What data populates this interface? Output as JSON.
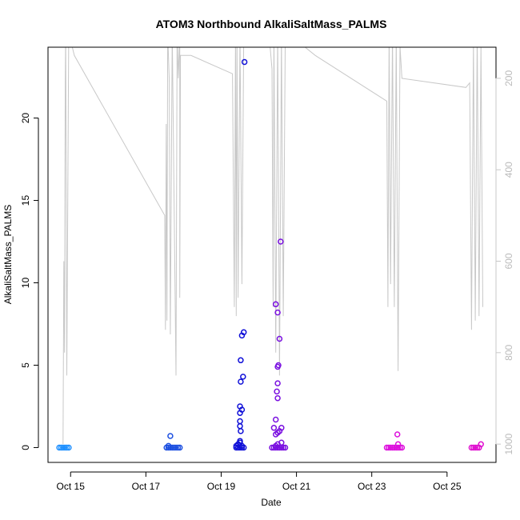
{
  "chart_data": {
    "type": "scatter",
    "title": "ATOM3 Northbound AlkaliSaltMass_PALMS",
    "xlabel": "Date",
    "ylabel": "AlkaliSaltMass_PALMS",
    "y2label": "",
    "x_ticks": [
      {
        "day": 15,
        "label": "Oct 15"
      },
      {
        "day": 17,
        "label": "Oct 17"
      },
      {
        "day": 19,
        "label": "Oct 19"
      },
      {
        "day": 21,
        "label": "Oct 21"
      },
      {
        "day": 23,
        "label": "Oct 23"
      },
      {
        "day": 25,
        "label": "Oct 25"
      }
    ],
    "y_ticks": [
      0,
      5,
      10,
      15,
      20
    ],
    "y2_ticks": [
      200,
      400,
      600,
      800,
      1000
    ],
    "xlim": [
      14.4,
      26.3
    ],
    "ylim": [
      -0.9,
      24.3
    ],
    "y2lim": [
      1040,
      132
    ],
    "grid": false,
    "legend": "none",
    "colors": {
      "flight1": "#1E90FF",
      "flight2": "#1C4FE0",
      "flight3": "#1010D8",
      "flight4": "#7A10E0",
      "flight5": "#DD10DD",
      "flight6": "#E010D0",
      "pressure": "#c8c8c8",
      "axis": "#000000",
      "axis2": "#c8c8c8"
    },
    "series": [
      {
        "color": "#1E90FF",
        "points": [
          [
            14.7,
            0
          ],
          [
            14.75,
            0
          ],
          [
            14.8,
            0
          ],
          [
            14.85,
            0
          ],
          [
            14.9,
            0
          ],
          [
            14.95,
            0
          ]
        ]
      },
      {
        "color": "#1C4FE0",
        "points": [
          [
            17.55,
            0
          ],
          [
            17.6,
            0
          ],
          [
            17.65,
            0
          ],
          [
            17.7,
            0
          ],
          [
            17.75,
            0
          ],
          [
            17.8,
            0
          ],
          [
            17.85,
            0
          ],
          [
            17.9,
            0
          ],
          [
            17.6,
            0.1
          ],
          [
            17.65,
            0.7
          ]
        ]
      },
      {
        "color": "#1010D8",
        "points": [
          [
            19.4,
            0
          ],
          [
            19.45,
            0
          ],
          [
            19.5,
            0
          ],
          [
            19.55,
            0
          ],
          [
            19.6,
            0
          ],
          [
            19.45,
            0.2
          ],
          [
            19.5,
            0.3
          ],
          [
            19.55,
            0.1
          ],
          [
            19.4,
            0.1
          ],
          [
            19.5,
            0.4
          ],
          [
            19.52,
            1.0
          ],
          [
            19.5,
            1.3
          ],
          [
            19.5,
            1.6
          ],
          [
            19.5,
            2.1
          ],
          [
            19.55,
            2.3
          ],
          [
            19.5,
            2.5
          ],
          [
            19.52,
            4.0
          ],
          [
            19.58,
            4.3
          ],
          [
            19.52,
            5.3
          ],
          [
            19.55,
            6.8
          ],
          [
            19.6,
            7.0
          ],
          [
            19.62,
            23.4
          ]
        ]
      },
      {
        "color": "#7A10E0",
        "points": [
          [
            20.35,
            0
          ],
          [
            20.4,
            0
          ],
          [
            20.45,
            0
          ],
          [
            20.5,
            0
          ],
          [
            20.55,
            0
          ],
          [
            20.6,
            0
          ],
          [
            20.65,
            0
          ],
          [
            20.7,
            0
          ],
          [
            20.5,
            0.2
          ],
          [
            20.6,
            0.3
          ],
          [
            20.45,
            0.1
          ],
          [
            20.45,
            0.8
          ],
          [
            20.5,
            0.9
          ],
          [
            20.55,
            1.0
          ],
          [
            20.6,
            1.2
          ],
          [
            20.4,
            1.2
          ],
          [
            20.45,
            1.7
          ],
          [
            20.5,
            3.0
          ],
          [
            20.48,
            3.4
          ],
          [
            20.5,
            3.9
          ],
          [
            20.5,
            4.9
          ],
          [
            20.52,
            5.0
          ],
          [
            20.55,
            6.6
          ],
          [
            20.5,
            8.2
          ],
          [
            20.45,
            8.7
          ],
          [
            20.58,
            12.5
          ]
        ]
      },
      {
        "color": "#DD10DD",
        "points": [
          [
            23.4,
            0
          ],
          [
            23.45,
            0
          ],
          [
            23.5,
            0
          ],
          [
            23.55,
            0
          ],
          [
            23.6,
            0
          ],
          [
            23.65,
            0
          ],
          [
            23.7,
            0
          ],
          [
            23.75,
            0
          ],
          [
            23.8,
            0
          ],
          [
            23.7,
            0.2
          ],
          [
            23.68,
            0.8
          ]
        ]
      },
      {
        "color": "#E010D0",
        "points": [
          [
            25.65,
            0
          ],
          [
            25.7,
            0
          ],
          [
            25.75,
            0
          ],
          [
            25.8,
            0
          ],
          [
            25.85,
            0
          ],
          [
            25.9,
            0.2
          ]
        ]
      }
    ],
    "pressure_trace": [
      [
        14.8,
        1000
      ],
      [
        14.82,
        600
      ],
      [
        14.84,
        800
      ],
      [
        14.85,
        400
      ],
      [
        14.86,
        200
      ],
      [
        14.87,
        100
      ],
      [
        14.9,
        850
      ],
      [
        14.95,
        100
      ],
      [
        15.1,
        150
      ],
      [
        17.5,
        500
      ],
      [
        17.52,
        750
      ],
      [
        17.54,
        300
      ],
      [
        17.56,
        730
      ],
      [
        17.58,
        100
      ],
      [
        17.62,
        200
      ],
      [
        17.65,
        760
      ],
      [
        17.7,
        100
      ],
      [
        17.8,
        850
      ],
      [
        17.83,
        100
      ],
      [
        17.86,
        200
      ],
      [
        17.9,
        100
      ],
      [
        17.9,
        680
      ],
      [
        17.92,
        150
      ],
      [
        18.2,
        150
      ],
      [
        19.3,
        190
      ],
      [
        19.35,
        700
      ],
      [
        19.38,
        100
      ],
      [
        19.4,
        720
      ],
      [
        19.42,
        100
      ],
      [
        19.45,
        680
      ],
      [
        19.5,
        100
      ],
      [
        19.55,
        650
      ],
      [
        19.6,
        100
      ],
      [
        19.65,
        130
      ],
      [
        20.3,
        130
      ],
      [
        20.35,
        180
      ],
      [
        20.38,
        700
      ],
      [
        20.4,
        100
      ],
      [
        20.45,
        800
      ],
      [
        20.5,
        100
      ],
      [
        20.55,
        850
      ],
      [
        20.6,
        110
      ],
      [
        20.65,
        720
      ],
      [
        20.7,
        130
      ],
      [
        21.2,
        130
      ],
      [
        21.5,
        150
      ],
      [
        23.4,
        250
      ],
      [
        23.43,
        700
      ],
      [
        23.46,
        100
      ],
      [
        23.5,
        650
      ],
      [
        23.55,
        100
      ],
      [
        23.6,
        700
      ],
      [
        23.65,
        110
      ],
      [
        23.7,
        840
      ],
      [
        23.75,
        130
      ],
      [
        23.8,
        200
      ],
      [
        25.5,
        220
      ],
      [
        25.6,
        210
      ],
      [
        25.65,
        750
      ],
      [
        25.7,
        120
      ],
      [
        25.75,
        730
      ],
      [
        25.8,
        100
      ],
      [
        25.85,
        720
      ],
      [
        25.9,
        130
      ],
      [
        25.95,
        700
      ]
    ]
  }
}
